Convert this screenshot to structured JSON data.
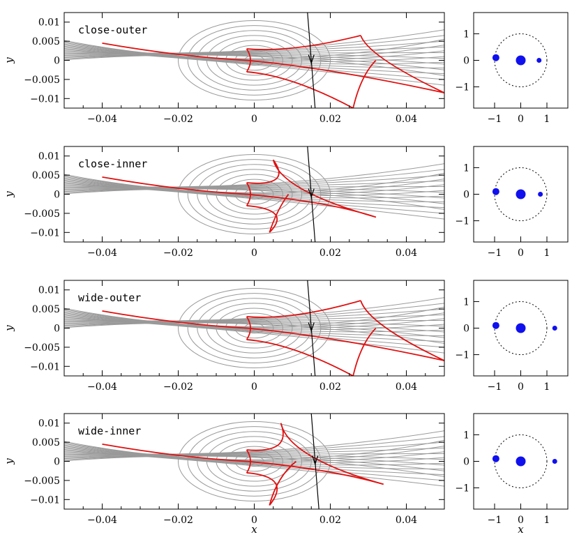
{
  "colors": {
    "contour": "#999999",
    "caustic": "#e01010",
    "trajectory": "#000000",
    "lens": "#1010ee",
    "axes": "#000000"
  },
  "axis_labels": {
    "x": "x",
    "y": "y"
  },
  "chart_data": [
    {
      "type": "line",
      "panel": "close-outer",
      "xlim": [
        -0.05,
        0.05
      ],
      "ylim": [
        -0.0125,
        0.0125
      ],
      "xticks": [
        -0.04,
        -0.02,
        0,
        0.02,
        0.04
      ],
      "xtick_labels": [
        "−0.04",
        "−0.02",
        "0",
        "0.02",
        "0.04"
      ],
      "yticks": [
        0.01,
        0.005,
        0,
        -0.005,
        -0.01
      ],
      "ytick_labels": [
        "0.01",
        "0.005",
        "0",
        "−0.005",
        "−0.01"
      ],
      "caustic": {
        "central": [
          [
            -0.002,
            0.003
          ],
          [
            0.0,
            0.0
          ],
          [
            -0.002,
            -0.003
          ]
        ],
        "upper_cusp": [
          0.028,
          0.0065
        ],
        "lower_cusp": [
          0.026,
          -0.0125
        ],
        "tail": [
          [
            -0.04,
            0.0045
          ],
          [
            0.0,
            -0.0045
          ],
          [
            0.05,
            -0.0085
          ]
        ]
      },
      "trajectory": [
        [
          0.014,
          0.0125
        ],
        [
          0.016,
          -0.0125
        ]
      ],
      "lens_geometry": {
        "xlim": [
          -1.8,
          1.8
        ],
        "ylim": [
          -1.8,
          1.8
        ],
        "ticks": [
          -1,
          0,
          1
        ],
        "circle_radius": 1.0,
        "bodies": [
          {
            "x": -0.95,
            "y": 0.1,
            "size": "medium"
          },
          {
            "x": 0.0,
            "y": 0.0,
            "size": "large"
          },
          {
            "x": 0.7,
            "y": 0.0,
            "size": "small"
          }
        ]
      }
    },
    {
      "type": "line",
      "panel": "close-inner",
      "xlim": [
        -0.05,
        0.05
      ],
      "ylim": [
        -0.0125,
        0.0125
      ],
      "xticks": [
        -0.04,
        -0.02,
        0,
        0.02,
        0.04
      ],
      "xtick_labels": [
        "−0.04",
        "−0.02",
        "0",
        "0.02",
        "0.04"
      ],
      "yticks": [
        0.01,
        0.005,
        0,
        -0.005,
        -0.01
      ],
      "ytick_labels": [
        "0.01",
        "0.005",
        "0",
        "−0.005",
        "−0.01"
      ],
      "caustic": {
        "upper_cusp": [
          0.005,
          0.009
        ],
        "lower_cusp": [
          0.004,
          -0.01
        ],
        "tail_end": [
          0.032,
          -0.006
        ]
      },
      "trajectory": [
        [
          0.014,
          0.0125
        ],
        [
          0.016,
          -0.0125
        ]
      ],
      "lens_geometry": {
        "xlim": [
          -1.8,
          1.8
        ],
        "ylim": [
          -1.8,
          1.8
        ],
        "ticks": [
          -1,
          0,
          1
        ],
        "circle_radius": 1.0,
        "bodies": [
          {
            "x": -0.95,
            "y": 0.1,
            "size": "medium"
          },
          {
            "x": 0.0,
            "y": 0.0,
            "size": "large"
          },
          {
            "x": 0.75,
            "y": 0.0,
            "size": "small"
          }
        ]
      }
    },
    {
      "type": "line",
      "panel": "wide-outer",
      "xlim": [
        -0.05,
        0.05
      ],
      "ylim": [
        -0.0125,
        0.0125
      ],
      "xticks": [
        -0.04,
        -0.02,
        0,
        0.02,
        0.04
      ],
      "xtick_labels": [
        "−0.04",
        "−0.02",
        "0",
        "0.02",
        "0.04"
      ],
      "yticks": [
        0.01,
        0.005,
        0,
        -0.005,
        -0.01
      ],
      "ytick_labels": [
        "0.01",
        "0.005",
        "0",
        "−0.005",
        "−0.01"
      ],
      "caustic": {
        "upper_cusp": [
          0.028,
          0.0072
        ],
        "lower_cusp": [
          0.026,
          -0.0125
        ],
        "tail_end": [
          0.05,
          -0.0085
        ]
      },
      "trajectory": [
        [
          0.014,
          0.0125
        ],
        [
          0.016,
          -0.0125
        ]
      ],
      "lens_geometry": {
        "xlim": [
          -1.8,
          1.8
        ],
        "ylim": [
          -1.8,
          1.8
        ],
        "ticks": [
          -1,
          0,
          1
        ],
        "circle_radius": 1.0,
        "bodies": [
          {
            "x": -0.95,
            "y": 0.1,
            "size": "medium"
          },
          {
            "x": 0.0,
            "y": 0.0,
            "size": "large"
          },
          {
            "x": 1.3,
            "y": 0.0,
            "size": "small"
          }
        ]
      }
    },
    {
      "type": "line",
      "panel": "wide-inner",
      "xlim": [
        -0.05,
        0.05
      ],
      "ylim": [
        -0.0125,
        0.0125
      ],
      "xticks": [
        -0.04,
        -0.02,
        0,
        0.02,
        0.04
      ],
      "xtick_labels": [
        "−0.04",
        "−0.02",
        "0",
        "0.02",
        "0.04"
      ],
      "yticks": [
        0.01,
        0.005,
        0,
        -0.005,
        -0.01
      ],
      "ytick_labels": [
        "0.01",
        "0.005",
        "0",
        "−0.005",
        "−0.01"
      ],
      "caustic": {
        "upper_cusp": [
          0.007,
          0.01
        ],
        "lower_cusp": [
          0.004,
          -0.0115
        ],
        "tail_end": [
          0.034,
          -0.006
        ]
      },
      "trajectory": [
        [
          0.015,
          0.0125
        ],
        [
          0.017,
          -0.0125
        ]
      ],
      "lens_geometry": {
        "xlim": [
          -1.8,
          1.8
        ],
        "ylim": [
          -1.8,
          1.8
        ],
        "ticks": [
          -1,
          0,
          1
        ],
        "circle_radius": 1.0,
        "bodies": [
          {
            "x": -0.95,
            "y": 0.1,
            "size": "medium"
          },
          {
            "x": 0.0,
            "y": 0.0,
            "size": "large"
          },
          {
            "x": 1.3,
            "y": 0.0,
            "size": "small"
          }
        ]
      }
    }
  ]
}
